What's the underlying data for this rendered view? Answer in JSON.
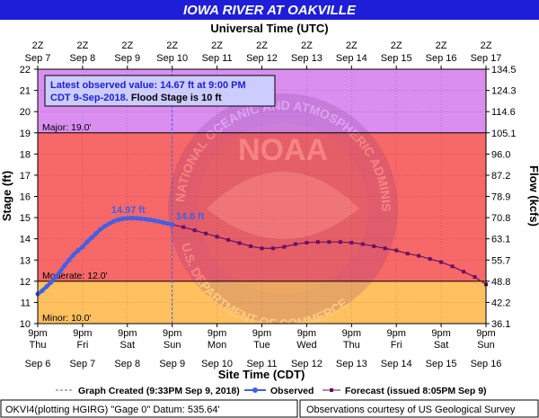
{
  "title": "IOWA RIVER AT OAKVILLE",
  "top_axis_title": "Universal Time (UTC)",
  "bottom_axis_title": "Site Time (CDT)",
  "left_axis_title": "Stage (ft)",
  "right_axis_title": "Flow (kcfs)",
  "info_box": {
    "line1": "Latest observed value: 14.67 ft at 9:00 PM",
    "line2_blue": "CDT 9-Sep-2018.",
    "line2_black": " Flood Stage is 10 ft"
  },
  "watermark": {
    "acronym": "NOAA",
    "ring_text": "NATIONAL OCEANIC AND ATMOSPHERIC ADMINISTRATION",
    "bottom_text": "U.S. DEPARTMENT OF COMMERCE"
  },
  "legend": {
    "created": "Graph Created (9:33PM Sep 9, 2018)",
    "observed": "Observed",
    "forecast": "Forecast (issued 8:05PM Sep 9)"
  },
  "footer": {
    "left": "OKVI4(plotting HGIRG) \"Gage 0\" Datum:  535.64'",
    "right": "Observations courtesy of US Geological Survey"
  },
  "colors": {
    "major": "#d98ef0",
    "moderate_band": "#f76868",
    "minor_band": "#ffc060",
    "observed": "#4060e8",
    "forecast": "#6b1060",
    "title_bg": "#1e1ed8",
    "title_fg": "#ffffff"
  },
  "chart_data": {
    "type": "line",
    "xlim": [
      0,
      10
    ],
    "ylim": [
      10,
      22
    ],
    "y_ticks": [
      10,
      11,
      12,
      13,
      14,
      15,
      16,
      17,
      18,
      19,
      20,
      21,
      22
    ],
    "flow_ticks": [
      {
        "stage": 10,
        "label": "36.1"
      },
      {
        "stage": 11,
        "label": "42.2"
      },
      {
        "stage": 12,
        "label": "48.8"
      },
      {
        "stage": 13,
        "label": "55.7"
      },
      {
        "stage": 14,
        "label": "63.1"
      },
      {
        "stage": 15,
        "label": "70.8"
      },
      {
        "stage": 16,
        "label": "78.9"
      },
      {
        "stage": 17,
        "label": "87.2"
      },
      {
        "stage": 18,
        "label": "96.0"
      },
      {
        "stage": 19,
        "label": "105.1"
      },
      {
        "stage": 20,
        "label": "114.6"
      },
      {
        "stage": 21,
        "label": "124.3"
      },
      {
        "stage": 22,
        "label": "134.5"
      }
    ],
    "bottom_ticks": [
      {
        "x": 0,
        "time": "9pm",
        "day": "Thu",
        "date": "Sep 6"
      },
      {
        "x": 1,
        "time": "9pm",
        "day": "Fri",
        "date": "Sep 7"
      },
      {
        "x": 2,
        "time": "9pm",
        "day": "Sat",
        "date": "Sep 8"
      },
      {
        "x": 3,
        "time": "9pm",
        "day": "Sun",
        "date": "Sep 9"
      },
      {
        "x": 4,
        "time": "9pm",
        "day": "Mon",
        "date": "Sep 10"
      },
      {
        "x": 5,
        "time": "9pm",
        "day": "Tue",
        "date": "Sep 11"
      },
      {
        "x": 6,
        "time": "9pm",
        "day": "Wed",
        "date": "Sep 12"
      },
      {
        "x": 7,
        "time": "9pm",
        "day": "Thu",
        "date": "Sep 13"
      },
      {
        "x": 8,
        "time": "9pm",
        "day": "Fri",
        "date": "Sep 14"
      },
      {
        "x": 9,
        "time": "9pm",
        "day": "Sat",
        "date": "Sep 15"
      },
      {
        "x": 10,
        "time": "9pm",
        "day": "Sun",
        "date": "Sep 16"
      }
    ],
    "top_ticks": [
      {
        "x": 0,
        "time": "2Z",
        "date": "Sep 7"
      },
      {
        "x": 1,
        "time": "2Z",
        "date": "Sep 8"
      },
      {
        "x": 2,
        "time": "2Z",
        "date": "Sep 9"
      },
      {
        "x": 3,
        "time": "2Z",
        "date": "Sep 10"
      },
      {
        "x": 4,
        "time": "2Z",
        "date": "Sep 11"
      },
      {
        "x": 5,
        "time": "2Z",
        "date": "Sep 12"
      },
      {
        "x": 6,
        "time": "2Z",
        "date": "Sep 13"
      },
      {
        "x": 7,
        "time": "2Z",
        "date": "Sep 14"
      },
      {
        "x": 8,
        "time": "2Z",
        "date": "Sep 15"
      },
      {
        "x": 9,
        "time": "2Z",
        "date": "Sep 16"
      },
      {
        "x": 10,
        "time": "2Z",
        "date": "Sep 17"
      }
    ],
    "thresholds": [
      {
        "name": "Major",
        "label": "Major: 19.0'",
        "value": 19
      },
      {
        "name": "Moderate",
        "label": "Moderate: 12.0'",
        "value": 12
      },
      {
        "name": "Minor",
        "label": "Minor: 10.0'",
        "value": 10
      }
    ],
    "created_x": 3.0,
    "peak_label": "14.97 ft",
    "peak_point": {
      "x": 2.0,
      "y": 14.97
    },
    "forecast_label": "14.6 ft",
    "observed_points": [
      [
        0.0,
        11.4
      ],
      [
        0.1,
        11.55
      ],
      [
        0.2,
        11.75
      ],
      [
        0.3,
        11.95
      ],
      [
        0.4,
        12.2
      ],
      [
        0.5,
        12.45
      ],
      [
        0.6,
        12.75
      ],
      [
        0.7,
        13.0
      ],
      [
        0.8,
        13.25
      ],
      [
        0.9,
        13.45
      ],
      [
        1.0,
        13.62
      ],
      [
        1.1,
        13.85
      ],
      [
        1.2,
        14.05
      ],
      [
        1.3,
        14.25
      ],
      [
        1.4,
        14.45
      ],
      [
        1.5,
        14.6
      ],
      [
        1.6,
        14.72
      ],
      [
        1.7,
        14.83
      ],
      [
        1.8,
        14.9
      ],
      [
        1.9,
        14.95
      ],
      [
        2.0,
        14.97
      ],
      [
        2.1,
        14.98
      ],
      [
        2.2,
        14.97
      ],
      [
        2.3,
        14.95
      ],
      [
        2.4,
        14.93
      ],
      [
        2.5,
        14.9
      ],
      [
        2.6,
        14.86
      ],
      [
        2.7,
        14.82
      ],
      [
        2.8,
        14.77
      ],
      [
        2.9,
        14.72
      ],
      [
        3.0,
        14.67
      ]
    ],
    "forecast_points": [
      [
        3.0,
        14.67
      ],
      [
        3.25,
        14.55
      ],
      [
        3.5,
        14.4
      ],
      [
        3.75,
        14.25
      ],
      [
        4.0,
        14.1
      ],
      [
        4.25,
        13.95
      ],
      [
        4.5,
        13.8
      ],
      [
        4.75,
        13.65
      ],
      [
        5.0,
        13.55
      ],
      [
        5.25,
        13.55
      ],
      [
        5.5,
        13.62
      ],
      [
        5.75,
        13.75
      ],
      [
        6.0,
        13.82
      ],
      [
        6.25,
        13.85
      ],
      [
        6.5,
        13.85
      ],
      [
        6.75,
        13.85
      ],
      [
        7.0,
        13.82
      ],
      [
        7.25,
        13.75
      ],
      [
        7.5,
        13.65
      ],
      [
        7.75,
        13.55
      ],
      [
        8.0,
        13.45
      ],
      [
        8.25,
        13.3
      ],
      [
        8.5,
        13.2
      ],
      [
        8.75,
        13.05
      ],
      [
        9.0,
        12.9
      ],
      [
        9.25,
        12.7
      ],
      [
        9.5,
        12.45
      ],
      [
        9.75,
        12.2
      ],
      [
        10.0,
        11.85
      ]
    ]
  }
}
